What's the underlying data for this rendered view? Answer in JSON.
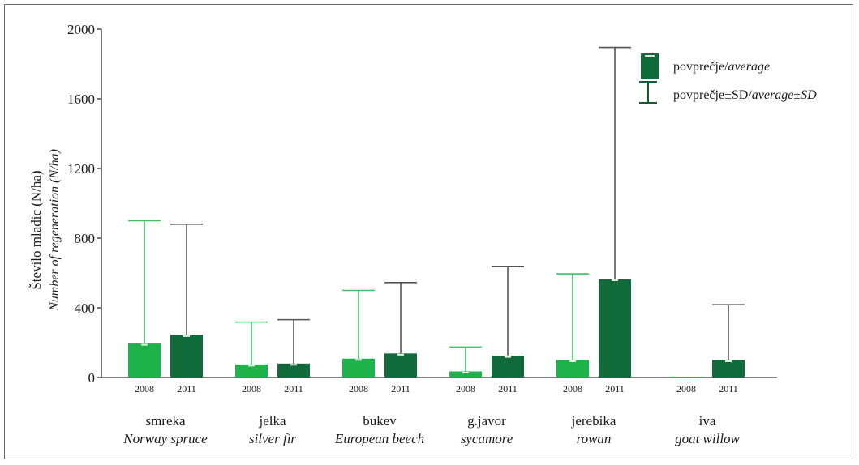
{
  "chart_data": {
    "type": "bar",
    "ylabel": "Število mladic (N/ha)",
    "ylabel_en": "Number of regeneration (N/ha)",
    "ylim": [
      0,
      2000
    ],
    "yticks": [
      0,
      400,
      800,
      1200,
      1600,
      2000
    ],
    "grid": false,
    "legend_placement": "top-right",
    "legend": {
      "average_plain": "povprečje/",
      "average_italic": "average",
      "sd_plain": "povprečje±SD/",
      "sd_italic": "average±SD"
    },
    "colors": {
      "2008": "#1fb14a",
      "2011": "#0f6b3a",
      "whisker_2008": "#3cc060",
      "whisker_2011": "#555555"
    },
    "years": [
      "2008",
      "2011"
    ],
    "categories": [
      {
        "name": "smreka",
        "name_en": "Norway spruce"
      },
      {
        "name": "jelka",
        "name_en": "silver fir"
      },
      {
        "name": "bukev",
        "name_en": "European beech"
      },
      {
        "name": "g.javor",
        "name_en": "sycamore"
      },
      {
        "name": "jerebika",
        "name_en": "rowan"
      },
      {
        "name": "iva",
        "name_en": "goat willow"
      }
    ],
    "series": [
      {
        "name": "2008",
        "average": [
          195,
          75,
          108,
          35,
          100,
          3
        ],
        "average_plus_sd": [
          900,
          318,
          500,
          175,
          595,
          3
        ]
      },
      {
        "name": "2011",
        "average": [
          245,
          80,
          138,
          125,
          565,
          100
        ],
        "average_plus_sd": [
          880,
          332,
          545,
          638,
          1895,
          418
        ]
      }
    ]
  }
}
